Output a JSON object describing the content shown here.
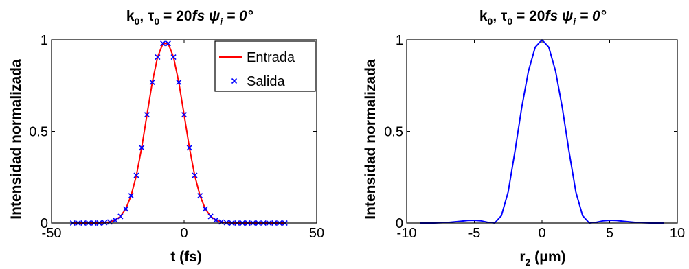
{
  "chart_data": [
    {
      "type": "line",
      "title_base": "k",
      "title_sub0": "0",
      "title_mid": ", ",
      "title_tau": "τ",
      "title_sub1": "0",
      "title_eq": " = 20",
      "title_fs": "fs ",
      "title_psi": "ψ",
      "title_sub_i": "i",
      "title_end": " = 0°",
      "xlabel": "t (fs)",
      "ylabel": "Intensidad normalizada",
      "xlim": [
        -50,
        50
      ],
      "ylim": [
        0,
        1
      ],
      "xticks": [
        -50,
        0,
        50
      ],
      "xtick_labels": [
        "-50",
        "0",
        "50"
      ],
      "yticks": [
        0,
        0.5,
        1
      ],
      "ytick_labels": [
        "0",
        "0.5",
        "1"
      ],
      "grid": false,
      "legend_position": "top-right",
      "series": [
        {
          "name": "Entrada",
          "style": "line",
          "color": "#ff0000",
          "x": [
            -42,
            -40,
            -38,
            -36,
            -34,
            -32,
            -30,
            -28,
            -26,
            -24,
            -22,
            -20,
            -18,
            -16,
            -14,
            -12,
            -10,
            -8,
            -6,
            -4,
            -2,
            0,
            2,
            4,
            6,
            8,
            10,
            12,
            14,
            16,
            18,
            20,
            22,
            24,
            26,
            28,
            30,
            32,
            34,
            36,
            38
          ],
          "y": [
            0.0,
            0.0,
            0.0,
            0.0,
            0.0,
            0.0,
            0.002,
            0.006,
            0.016,
            0.036,
            0.077,
            0.149,
            0.26,
            0.411,
            0.591,
            0.768,
            0.906,
            0.98,
            0.98,
            0.906,
            0.768,
            0.591,
            0.411,
            0.26,
            0.149,
            0.077,
            0.036,
            0.016,
            0.006,
            0.002,
            0.0,
            0.0,
            0.0,
            0.0,
            0.0,
            0.0,
            0.0,
            0.0,
            0.0,
            0.0,
            0.0
          ]
        },
        {
          "name": "Salida",
          "style": "marker-x",
          "color": "#0000ff",
          "x": [
            -42,
            -40,
            -38,
            -36,
            -34,
            -32,
            -30,
            -28,
            -26,
            -24,
            -22,
            -20,
            -18,
            -16,
            -14,
            -12,
            -10,
            -8,
            -6,
            -4,
            -2,
            0,
            2,
            4,
            6,
            8,
            10,
            12,
            14,
            16,
            18,
            20,
            22,
            24,
            26,
            28,
            30,
            32,
            34,
            36,
            38
          ],
          "y": [
            0.0,
            0.0,
            0.0,
            0.0,
            0.0,
            0.0,
            0.002,
            0.006,
            0.016,
            0.036,
            0.077,
            0.149,
            0.26,
            0.411,
            0.591,
            0.768,
            0.906,
            0.98,
            0.98,
            0.906,
            0.768,
            0.591,
            0.411,
            0.26,
            0.149,
            0.077,
            0.036,
            0.016,
            0.006,
            0.002,
            0.0,
            0.0,
            0.0,
            0.0,
            0.0,
            0.0,
            0.0,
            0.0,
            0.0,
            0.0,
            0.0
          ]
        }
      ]
    },
    {
      "type": "line",
      "title_base": "k",
      "title_sub0": "0",
      "title_mid": ", ",
      "title_tau": "τ",
      "title_sub1": "0",
      "title_eq": " = 20",
      "title_fs": "fs ",
      "title_psi": "ψ",
      "title_sub_i": "i",
      "title_end": " = 0°",
      "xlabel_base": "r",
      "xlabel_sub": "2",
      "xlabel_rest": " (μm)",
      "ylabel": "Intensidad normalizada",
      "xlim": [
        -10,
        10
      ],
      "ylim": [
        0,
        1
      ],
      "xticks": [
        -10,
        -5,
        0,
        5,
        10
      ],
      "xtick_labels": [
        "-10",
        "-5",
        "0",
        "5",
        "10"
      ],
      "yticks": [
        0,
        0.5,
        1
      ],
      "ytick_labels": [
        "0",
        "0.5",
        "1"
      ],
      "grid": false,
      "series": [
        {
          "color": "#0000ff",
          "x": [
            -9,
            -8,
            -7,
            -6,
            -5.5,
            -5,
            -4.5,
            -4,
            -3.5,
            -3,
            -2.5,
            -2,
            -1.5,
            -1,
            -0.5,
            0,
            0.5,
            1,
            1.5,
            2,
            2.5,
            3,
            3.5,
            4,
            4.5,
            5,
            5.5,
            6,
            7,
            8,
            9
          ],
          "y": [
            0.0,
            0.0,
            0.003,
            0.01,
            0.014,
            0.015,
            0.012,
            0.004,
            0.0,
            0.04,
            0.17,
            0.39,
            0.63,
            0.83,
            0.96,
            1.0,
            0.96,
            0.83,
            0.63,
            0.39,
            0.17,
            0.04,
            0.0,
            0.004,
            0.012,
            0.015,
            0.014,
            0.01,
            0.003,
            0.0,
            0.0
          ]
        }
      ]
    }
  ]
}
